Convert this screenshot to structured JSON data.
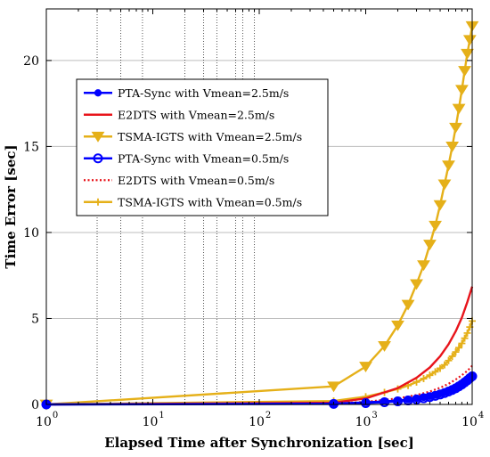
{
  "chart_data": {
    "type": "line",
    "title": "",
    "xlabel": "Elapsed Time after Synchronization [sec]",
    "ylabel": "Time Error [sec]",
    "xscale": "log",
    "xlim": [
      1,
      10000
    ],
    "ylim": [
      0,
      23
    ],
    "x_major_ticks": [
      1,
      10,
      100,
      1000,
      10000
    ],
    "x_tick_labels": [
      {
        "base": "10",
        "exp": "0"
      },
      {
        "base": "10",
        "exp": "1"
      },
      {
        "base": "10",
        "exp": "2"
      },
      {
        "base": "10",
        "exp": "3"
      },
      {
        "base": "10",
        "exp": "4"
      }
    ],
    "y_ticks": [
      0,
      5,
      10,
      15,
      20
    ],
    "y_tick_labels": [
      "0",
      "5",
      "10",
      "15",
      "20"
    ],
    "grid": "horizontal lines at y ticks; dotted vertical lines at x = 3, 5, 8, 20, 30, 40, 60, 70, 90",
    "vertical_grid_x": [
      3,
      5,
      8,
      20,
      30,
      40,
      60,
      70,
      90
    ],
    "legend_placement": "upper-left, inside axes",
    "series": [
      {
        "name": "PTA-Sync with Vmean=2.5m/s",
        "color": "#0000ff",
        "line": "solid",
        "marker": "dot",
        "x": [
          1,
          500,
          1000,
          1500,
          2000,
          2500,
          3000,
          3500,
          4000,
          4500,
          5000,
          5500,
          6000,
          6500,
          7000,
          7500,
          8000,
          8500,
          9000,
          9500,
          10000
        ],
        "y": [
          0,
          0.05,
          0.12,
          0.18,
          0.23,
          0.28,
          0.34,
          0.41,
          0.47,
          0.54,
          0.62,
          0.7,
          0.78,
          0.87,
          0.96,
          1.06,
          1.17,
          1.28,
          1.4,
          1.52,
          1.64
        ]
      },
      {
        "name": "E2DTS with Vmean=2.5m/s",
        "color": "#e8141b",
        "line": "solid",
        "marker": "none",
        "x": [
          1,
          500,
          1000,
          2000,
          3000,
          4000,
          5000,
          6000,
          7000,
          8000,
          9000,
          10000
        ],
        "y": [
          0,
          0.1,
          0.35,
          0.95,
          1.55,
          2.15,
          2.8,
          3.5,
          4.25,
          5.05,
          5.95,
          6.85
        ]
      },
      {
        "name": "TSMA-IGTS with Vmean=2.5m/s",
        "color": "#e5b019",
        "line": "solid",
        "marker": "triangle-down",
        "x": [
          1,
          500,
          1000,
          1500,
          2000,
          2500,
          3000,
          3500,
          4000,
          4500,
          5000,
          5500,
          6000,
          6500,
          7000,
          7500,
          8000,
          8500,
          9000,
          9500,
          10000
        ],
        "y": [
          0,
          1.05,
          2.2,
          3.4,
          4.6,
          5.8,
          7.0,
          8.1,
          9.3,
          10.4,
          11.6,
          12.8,
          13.9,
          15.0,
          16.1,
          17.2,
          18.3,
          19.4,
          20.4,
          21.2,
          22.0
        ]
      },
      {
        "name": "PTA-Sync with Vmean=0.5m/s",
        "color": "#0000ff",
        "line": "solid",
        "marker": "circle",
        "x": [
          1,
          500,
          1000,
          1500,
          2000,
          2500,
          3000,
          3500,
          4000,
          4500,
          5000,
          5500,
          6000,
          6500,
          7000,
          7500,
          8000,
          8500,
          9000,
          9500,
          10000
        ],
        "y": [
          0,
          0.03,
          0.08,
          0.13,
          0.18,
          0.23,
          0.29,
          0.36,
          0.43,
          0.5,
          0.58,
          0.66,
          0.75,
          0.84,
          0.94,
          1.05,
          1.16,
          1.28,
          1.4,
          1.53,
          1.64
        ]
      },
      {
        "name": "E2DTS with Vmean=0.5m/s",
        "color": "#e8141b",
        "line": "dotted",
        "marker": "none",
        "x": [
          1,
          500,
          1000,
          2000,
          3000,
          4000,
          5000,
          6000,
          7000,
          8000,
          9000,
          10000
        ],
        "y": [
          0,
          0.05,
          0.15,
          0.35,
          0.55,
          0.75,
          0.97,
          1.2,
          1.45,
          1.7,
          1.95,
          2.25
        ]
      },
      {
        "name": "TSMA-IGTS with Vmean=0.5m/s",
        "color": "#e5b019",
        "line": "solid",
        "marker": "plus",
        "x": [
          1,
          500,
          1000,
          1500,
          2000,
          2500,
          3000,
          3500,
          4000,
          4500,
          5000,
          5500,
          6000,
          6500,
          7000,
          7500,
          8000,
          8500,
          9000,
          9500,
          10000
        ],
        "y": [
          0,
          0.2,
          0.45,
          0.7,
          0.9,
          1.1,
          1.3,
          1.5,
          1.7,
          1.9,
          2.1,
          2.3,
          2.55,
          2.8,
          3.05,
          3.3,
          3.55,
          3.85,
          4.15,
          4.5,
          4.85
        ]
      }
    ]
  }
}
